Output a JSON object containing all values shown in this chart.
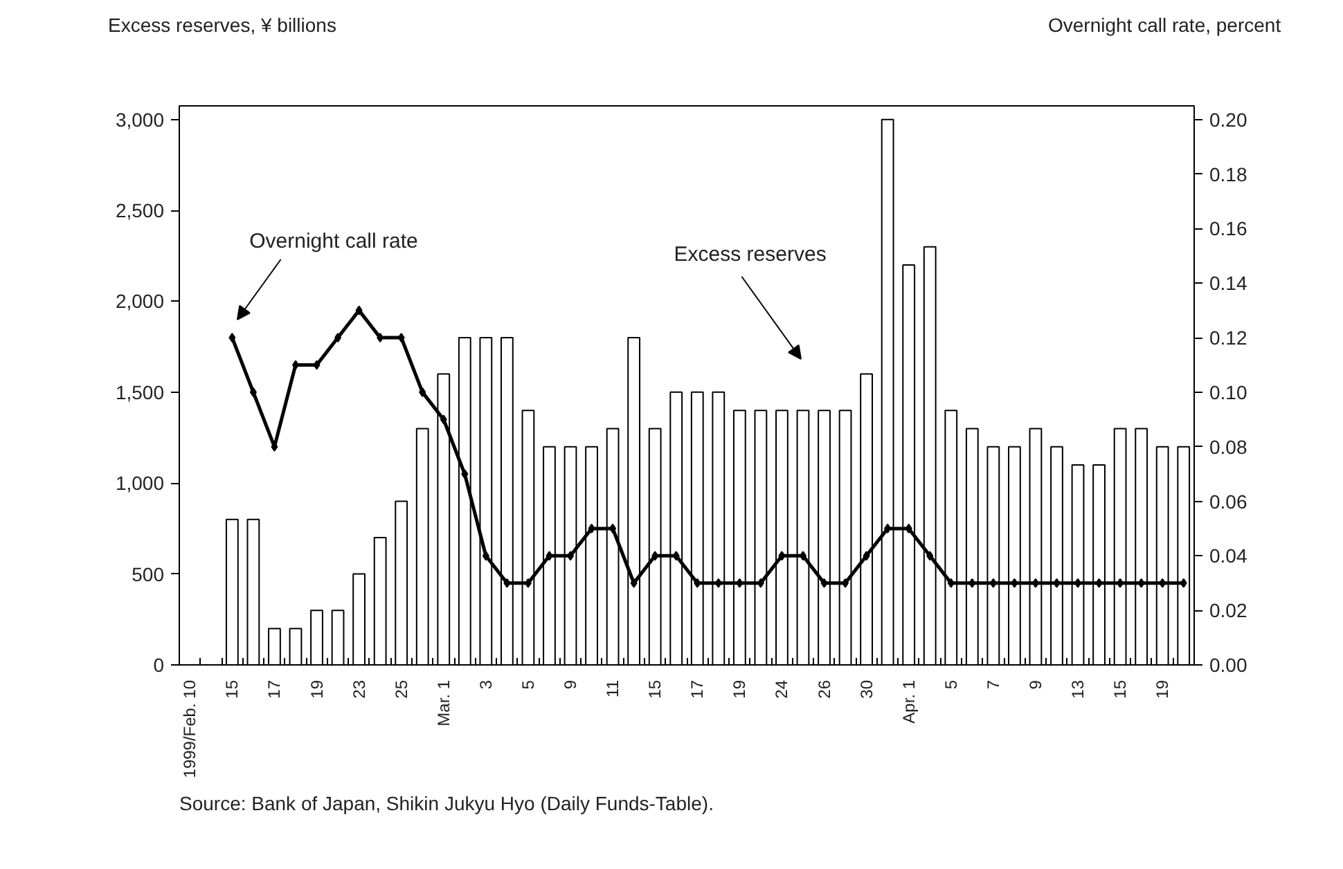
{
  "chart_data": {
    "type": "bar",
    "ylabel": "Excess reserves, ¥ billions",
    "y2label": "Overnight call rate, percent",
    "categories": [
      "1999/Feb. 10",
      null,
      "15",
      null,
      "17",
      null,
      "19",
      null,
      "23",
      null,
      "25",
      null,
      "Mar. 1",
      null,
      "3",
      null,
      "5",
      null,
      "9",
      null,
      "11",
      null,
      "15",
      null,
      "17",
      null,
      "19",
      null,
      "24",
      null,
      "26",
      null,
      "30",
      null,
      "Apr. 1",
      null,
      "5",
      null,
      "7",
      null,
      "9",
      null,
      "13",
      null,
      "15",
      null,
      "19",
      null
    ],
    "series": [
      {
        "name": "Excess reserves",
        "color": "#ffffff",
        "values": [
          null,
          null,
          800,
          800,
          200,
          200,
          300,
          300,
          500,
          700,
          900,
          1300,
          1600,
          1800,
          1800,
          1800,
          1400,
          1200,
          1200,
          1200,
          1300,
          1800,
          1300,
          1500,
          1500,
          1500,
          1400,
          1400,
          1400,
          1400,
          1400,
          1400,
          1600,
          3000,
          2200,
          2300,
          1400,
          1300,
          1200,
          1200,
          1300,
          1200,
          1100,
          1100,
          1300,
          1300,
          1200,
          1200
        ]
      },
      {
        "name": "Overnight call rate",
        "type": "line",
        "axis": "y2",
        "color": "#000000",
        "values": [
          null,
          null,
          0.12,
          0.1,
          0.08,
          0.11,
          0.11,
          0.12,
          0.13,
          0.12,
          0.12,
          0.1,
          0.09,
          0.07,
          0.04,
          0.03,
          0.03,
          0.04,
          0.04,
          0.05,
          0.05,
          0.03,
          0.04,
          0.04,
          0.03,
          0.03,
          0.03,
          0.03,
          0.04,
          0.04,
          0.03,
          0.03,
          0.04,
          0.05,
          0.05,
          0.04,
          0.03,
          0.03,
          0.03,
          0.03,
          0.03,
          0.03,
          0.03,
          0.03,
          0.03,
          0.03,
          0.03,
          0.03
        ]
      }
    ],
    "marker": "diamond",
    "legend": false,
    "grid": false,
    "ylim": [
      0,
      3075
    ],
    "yticks": [
      0,
      500,
      {
        "value": 1000,
        "label": "1,000"
      },
      {
        "value": 1500,
        "label": "1,500"
      },
      {
        "value": 2000,
        "label": "2,000"
      },
      {
        "value": 2500,
        "label": "2,500"
      },
      {
        "value": 3000,
        "label": "3,000"
      }
    ],
    "y2lim": [
      0,
      0.205
    ],
    "y2ticks": [
      {
        "value": 0,
        "label": "0.00"
      },
      {
        "value": 0.02,
        "label": "0.02"
      },
      {
        "value": 0.04,
        "label": "0.04"
      },
      {
        "value": 0.06,
        "label": "0.06"
      },
      {
        "value": 0.08,
        "label": "0.08"
      },
      {
        "value": 0.1,
        "label": "0.10"
      },
      {
        "value": 0.12,
        "label": "0.12"
      },
      {
        "value": 0.14,
        "label": "0.14"
      },
      {
        "value": 0.16,
        "label": "0.16"
      },
      {
        "value": 0.18,
        "label": "0.18"
      },
      {
        "value": 0.2,
        "label": "0.20"
      }
    ],
    "annotations": [
      "Source: Bank of Japan, Shikin Jukyu Hyo (Daily Funds-Table)."
    ]
  }
}
